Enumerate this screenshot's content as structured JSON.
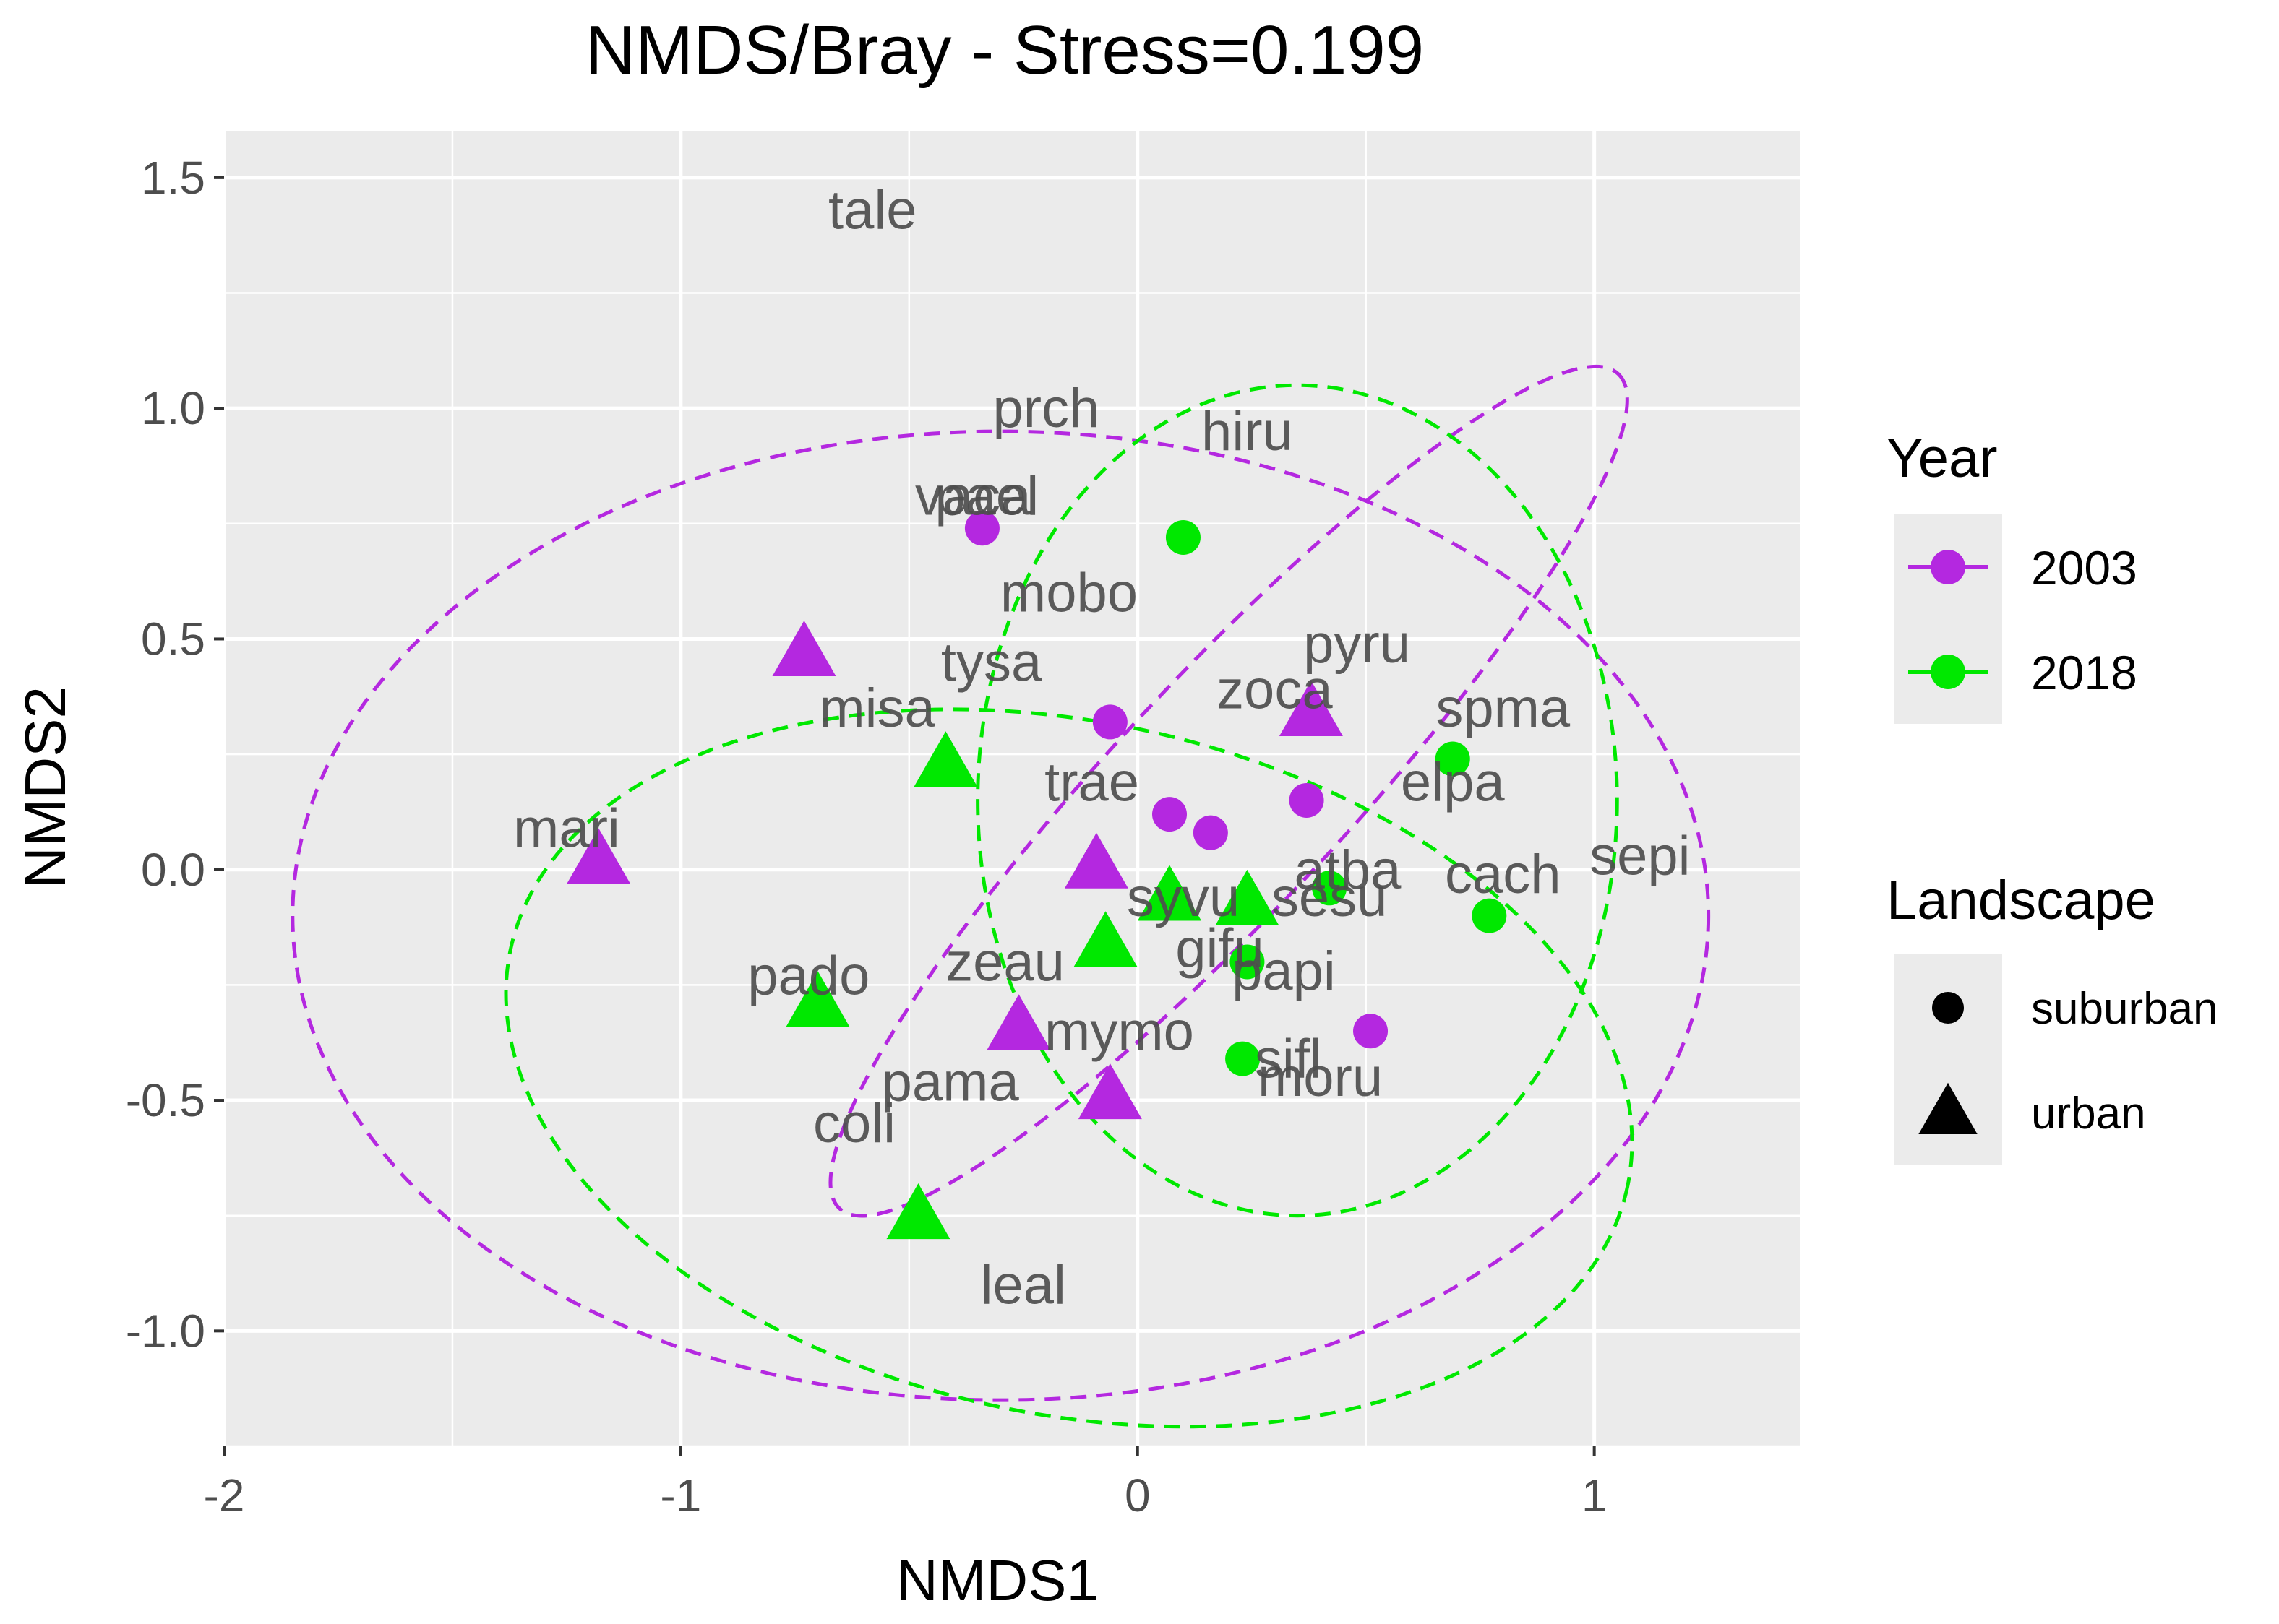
{
  "chart_data": {
    "type": "scatter",
    "title": "NMDS/Bray - Stress=0.199",
    "xlabel": "NMDS1",
    "ylabel": "NMDS2",
    "xlim": [
      -2.0,
      1.45
    ],
    "ylim": [
      -1.25,
      1.6
    ],
    "xticks": [
      {
        "value": -2,
        "label": "-2"
      },
      {
        "value": -1,
        "label": "-1"
      },
      {
        "value": 0,
        "label": "0"
      },
      {
        "value": 1,
        "label": "1"
      }
    ],
    "yticks": [
      {
        "value": -1.0,
        "label": "-1.0"
      },
      {
        "value": -0.5,
        "label": "-0.5"
      },
      {
        "value": 0.0,
        "label": "0.0"
      },
      {
        "value": 0.5,
        "label": "0.5"
      },
      {
        "value": 1.0,
        "label": "1.0"
      },
      {
        "value": 1.5,
        "label": "1.5"
      }
    ],
    "grid": true,
    "colors": {
      "2003": "#b428e0",
      "2018": "#00e800"
    },
    "legend": {
      "placement": "right",
      "year_title": "Year",
      "year_entries": [
        {
          "label": "2003",
          "color": "#b428e0"
        },
        {
          "label": "2018",
          "color": "#00e800"
        }
      ],
      "landscape_title": "Landscape",
      "landscape_entries": [
        {
          "label": "suburban",
          "shape": "circle"
        },
        {
          "label": "urban",
          "shape": "triangle"
        }
      ]
    },
    "points": [
      {
        "year": "2003",
        "landscape": "suburban",
        "x": -0.34,
        "y": 0.74
      },
      {
        "year": "2003",
        "landscape": "suburban",
        "x": -0.06,
        "y": 0.32
      },
      {
        "year": "2003",
        "landscape": "suburban",
        "x": 0.07,
        "y": 0.12
      },
      {
        "year": "2003",
        "landscape": "suburban",
        "x": 0.16,
        "y": 0.08
      },
      {
        "year": "2003",
        "landscape": "suburban",
        "x": 0.37,
        "y": 0.15
      },
      {
        "year": "2003",
        "landscape": "suburban",
        "x": 0.51,
        "y": -0.35
      },
      {
        "year": "2003",
        "landscape": "urban",
        "x": -1.18,
        "y": 0.02
      },
      {
        "year": "2003",
        "landscape": "urban",
        "x": -0.73,
        "y": 0.47
      },
      {
        "year": "2003",
        "landscape": "urban",
        "x": 0.38,
        "y": 0.34
      },
      {
        "year": "2003",
        "landscape": "urban",
        "x": -0.09,
        "y": 0.01
      },
      {
        "year": "2003",
        "landscape": "urban",
        "x": -0.26,
        "y": -0.34
      },
      {
        "year": "2003",
        "landscape": "urban",
        "x": -0.06,
        "y": -0.49
      },
      {
        "year": "2018",
        "landscape": "suburban",
        "x": 0.1,
        "y": 0.72
      },
      {
        "year": "2018",
        "landscape": "suburban",
        "x": 0.69,
        "y": 0.24
      },
      {
        "year": "2018",
        "landscape": "suburban",
        "x": 0.42,
        "y": -0.04
      },
      {
        "year": "2018",
        "landscape": "suburban",
        "x": 0.77,
        "y": -0.1
      },
      {
        "year": "2018",
        "landscape": "suburban",
        "x": 0.24,
        "y": -0.2
      },
      {
        "year": "2018",
        "landscape": "suburban",
        "x": 0.23,
        "y": -0.41
      },
      {
        "year": "2018",
        "landscape": "urban",
        "x": -0.42,
        "y": 0.23
      },
      {
        "year": "2018",
        "landscape": "urban",
        "x": 0.07,
        "y": -0.06
      },
      {
        "year": "2018",
        "landscape": "urban",
        "x": 0.24,
        "y": -0.07
      },
      {
        "year": "2018",
        "landscape": "urban",
        "x": -0.07,
        "y": -0.16
      },
      {
        "year": "2018",
        "landscape": "urban",
        "x": -0.7,
        "y": -0.29
      },
      {
        "year": "2018",
        "landscape": "urban",
        "x": -0.48,
        "y": -0.75
      }
    ],
    "species_labels": [
      {
        "text": "tale",
        "x": -0.58,
        "y": 1.43
      },
      {
        "text": "prch",
        "x": -0.2,
        "y": 1.0
      },
      {
        "text": "hiru",
        "x": 0.24,
        "y": 0.95
      },
      {
        "text": "vaca",
        "x": -0.36,
        "y": 0.81
      },
      {
        "text": "pael",
        "x": -0.33,
        "y": 0.81
      },
      {
        "text": "mobo",
        "x": -0.15,
        "y": 0.6
      },
      {
        "text": "tysa",
        "x": -0.32,
        "y": 0.45
      },
      {
        "text": "pyru",
        "x": 0.48,
        "y": 0.49
      },
      {
        "text": "zoca",
        "x": 0.3,
        "y": 0.39
      },
      {
        "text": "misa",
        "x": -0.57,
        "y": 0.35
      },
      {
        "text": "spma",
        "x": 0.8,
        "y": 0.35
      },
      {
        "text": "elpa",
        "x": 0.69,
        "y": 0.19
      },
      {
        "text": "trae",
        "x": -0.1,
        "y": 0.19
      },
      {
        "text": "mari",
        "x": -1.25,
        "y": 0.09
      },
      {
        "text": "sepi",
        "x": 1.1,
        "y": 0.03
      },
      {
        "text": "atba",
        "x": 0.46,
        "y": 0.0
      },
      {
        "text": "cach",
        "x": 0.8,
        "y": -0.01
      },
      {
        "text": "sesu",
        "x": 0.42,
        "y": -0.06
      },
      {
        "text": "syvu",
        "x": 0.1,
        "y": -0.06
      },
      {
        "text": "gifu",
        "x": 0.18,
        "y": -0.17
      },
      {
        "text": "papi",
        "x": 0.32,
        "y": -0.22
      },
      {
        "text": "pado",
        "x": -0.72,
        "y": -0.23
      },
      {
        "text": "zeau",
        "x": -0.29,
        "y": -0.2
      },
      {
        "text": "mymo",
        "x": -0.04,
        "y": -0.35
      },
      {
        "text": "sifl",
        "x": 0.33,
        "y": -0.41
      },
      {
        "text": "moru",
        "x": 0.4,
        "y": -0.45
      },
      {
        "text": "pama",
        "x": -0.41,
        "y": -0.46
      },
      {
        "text": "coli",
        "x": -0.62,
        "y": -0.55
      },
      {
        "text": "leal",
        "x": -0.25,
        "y": -0.9
      }
    ],
    "ellipses": [
      {
        "year": "2003",
        "cx": -0.3,
        "cy": -0.1,
        "rx": 1.55,
        "ry": 1.05,
        "angle_deg": 0
      },
      {
        "year": "2003",
        "cx": 0.2,
        "cy": 0.17,
        "rx": 1.25,
        "ry": 0.25,
        "angle_deg": -47
      },
      {
        "year": "2018",
        "cx": -0.15,
        "cy": -0.43,
        "rx": 1.25,
        "ry": 0.75,
        "angle_deg": 12
      },
      {
        "year": "2018",
        "cx": 0.35,
        "cy": 0.15,
        "rx": 0.7,
        "ry": 0.9,
        "angle_deg": 0
      }
    ]
  }
}
